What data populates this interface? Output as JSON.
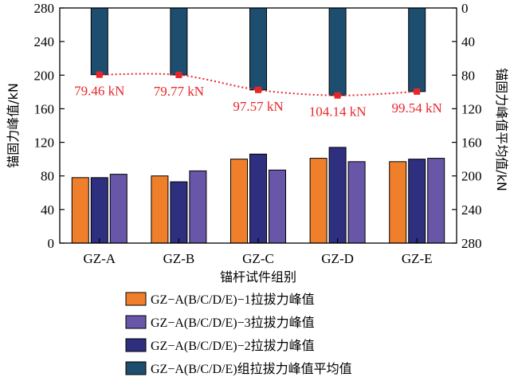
{
  "chart_data": {
    "type": "bar",
    "categories": [
      "GZ-A",
      "GZ-B",
      "GZ-C",
      "GZ-D",
      "GZ-E"
    ],
    "xlabel": "锚杆试件组别",
    "ylabel": "锚固力峰值/kN",
    "y2label": "锚固力峰值平均值/kN",
    "ylim": [
      0,
      280
    ],
    "y2lim": [
      280,
      0
    ],
    "y2_inverted": true,
    "yticks": [
      0,
      40,
      80,
      120,
      160,
      200,
      240,
      280
    ],
    "y2ticks": [
      0,
      40,
      80,
      120,
      160,
      200,
      240,
      280
    ],
    "grid": false,
    "legend_position": "bottom",
    "series": [
      {
        "name": "GZ−A(B/C/D/E)−1拉拔力峰值",
        "color": "#f07f2b",
        "axis": "left",
        "values": [
          78,
          80,
          100,
          101,
          97
        ]
      },
      {
        "name": "GZ−A(B/C/D/E)−2拉拔力峰值",
        "color": "#2e2f7e",
        "axis": "left",
        "values": [
          78,
          73,
          106,
          114,
          100
        ]
      },
      {
        "name": "GZ−A(B/C/D/E)−3拉拔力峰值",
        "color": "#6856a8",
        "axis": "left",
        "values": [
          82,
          86,
          87,
          97,
          101
        ]
      },
      {
        "name": "GZ−A(B/C/D/E)组拉拔力峰值平均值",
        "color": "#1d4e70",
        "axis": "right",
        "values": [
          79.46,
          79.77,
          97.57,
          104.14,
          99.54
        ]
      }
    ],
    "average_labels": [
      "79.46 kN",
      "79.77 kN",
      "97.57 kN",
      "104.14 kN",
      "99.54 kN"
    ],
    "legend_order": [
      0,
      2,
      1,
      3
    ],
    "trend_color": "#e8262a"
  }
}
